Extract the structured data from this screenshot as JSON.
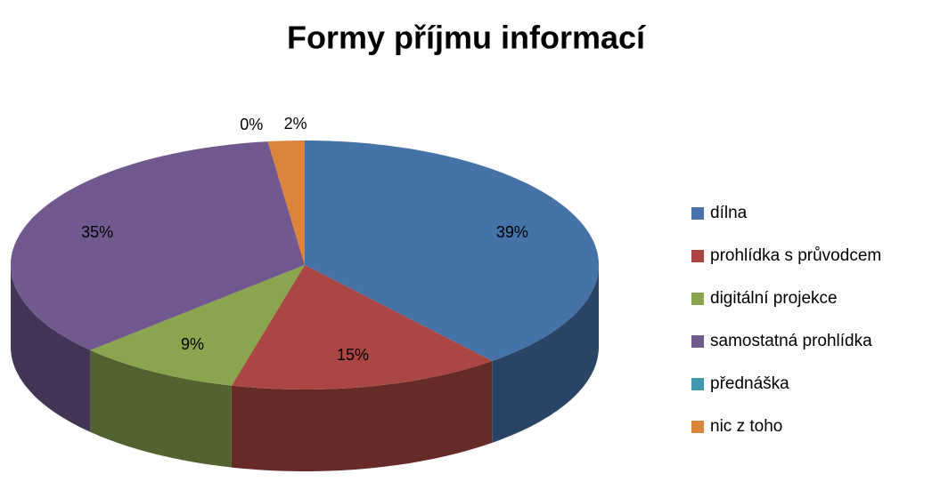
{
  "chart_data": {
    "type": "pie",
    "title": "Formy příjmu informací",
    "categories": [
      "dílna",
      "prohlídka s průvodcem",
      "digitální projekce",
      "samostatná prohlídka",
      "přednáška",
      "nic z toho"
    ],
    "values": [
      39,
      15,
      9,
      35,
      0,
      2
    ],
    "value_labels": [
      "39%",
      "15%",
      "9%",
      "35%",
      "0%",
      "2%"
    ],
    "colors": [
      "#4572a7",
      "#aa4643",
      "#89a54e",
      "#71588f",
      "#4198af",
      "#db843d"
    ],
    "legend": "right"
  }
}
